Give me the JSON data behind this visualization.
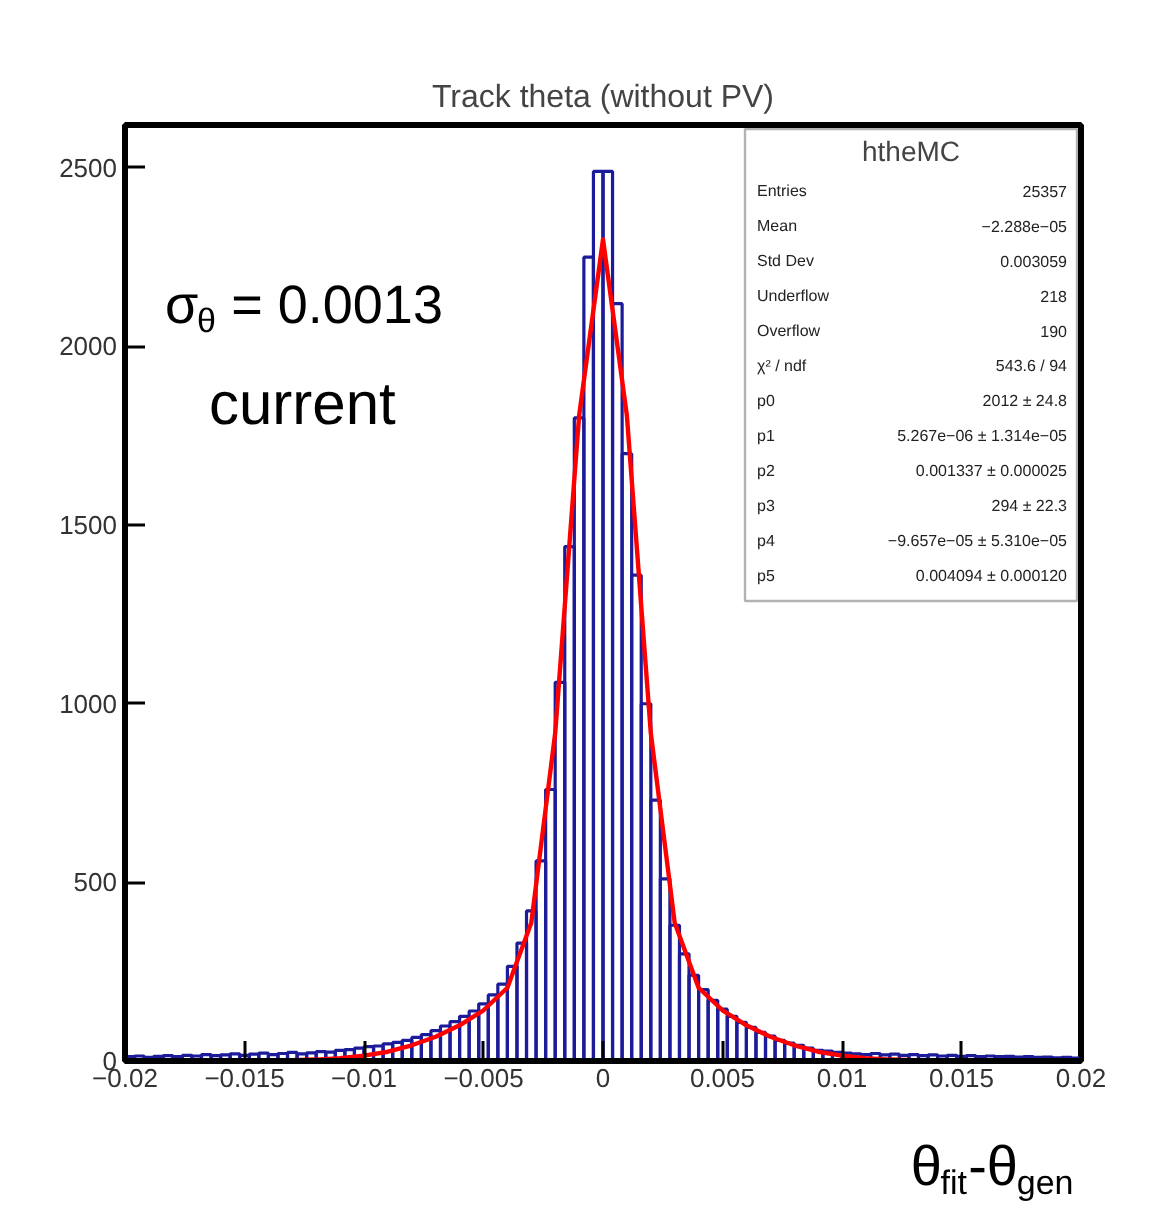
{
  "chart_data": [
    {
      "type": "histogram",
      "title": "Track theta (without PV)",
      "xlabel": "θ$_{fit}$-θ$_{gen}$",
      "color": "#1c1c9a",
      "bins": [
        -0.02,
        -0.0196,
        -0.0192,
        -0.0188,
        -0.0184,
        -0.018,
        -0.0176,
        -0.0172,
        -0.0168,
        -0.0164,
        -0.016,
        -0.0156,
        -0.0152,
        -0.0148,
        -0.0144,
        -0.014,
        -0.0136,
        -0.0132,
        -0.0128,
        -0.0124,
        -0.012,
        -0.0116,
        -0.0112,
        -0.0108,
        -0.0104,
        -0.01,
        -0.0096,
        -0.0092,
        -0.0088,
        -0.0084,
        -0.008,
        -0.0076,
        -0.0072,
        -0.0068,
        -0.0064,
        -0.006,
        -0.0056,
        -0.0052,
        -0.0048,
        -0.0044,
        -0.004,
        -0.0036,
        -0.0032,
        -0.0028,
        -0.0024,
        -0.002,
        -0.0016,
        -0.0012,
        -0.0008,
        -0.0004,
        0,
        0.0004,
        0.0008,
        0.0012,
        0.0016,
        0.002,
        0.0024,
        0.0028,
        0.0032,
        0.0036,
        0.004,
        0.0044,
        0.0048,
        0.0052,
        0.0056,
        0.006,
        0.0064,
        0.0068,
        0.0072,
        0.0076,
        0.008,
        0.0084,
        0.0088,
        0.0092,
        0.0096,
        0.01,
        0.0104,
        0.0108,
        0.0112,
        0.0116,
        0.012,
        0.0124,
        0.0128,
        0.0132,
        0.0136,
        0.014,
        0.0144,
        0.0148,
        0.0152,
        0.0156,
        0.016,
        0.0164,
        0.0168,
        0.0172,
        0.0176,
        0.018,
        0.0184,
        0.0188,
        0.0192,
        0.0196,
        0.02
      ],
      "values": [
        12,
        14,
        10,
        13,
        15,
        12,
        16,
        14,
        18,
        15,
        17,
        20,
        16,
        19,
        22,
        18,
        21,
        24,
        20,
        23,
        26,
        25,
        30,
        32,
        36,
        40,
        42,
        48,
        52,
        58,
        66,
        74,
        85,
        98,
        110,
        125,
        140,
        160,
        185,
        215,
        265,
        330,
        420,
        560,
        760,
        1060,
        1440,
        1800,
        2250,
        2490,
        2490,
        2120,
        1700,
        1360,
        1000,
        730,
        510,
        380,
        300,
        240,
        200,
        170,
        145,
        125,
        108,
        94,
        80,
        70,
        58,
        50,
        44,
        36,
        30,
        28,
        24,
        22,
        20,
        18,
        21,
        17,
        19,
        16,
        18,
        15,
        17,
        14,
        16,
        13,
        15,
        12,
        14,
        12,
        13,
        11,
        12,
        10,
        11,
        9,
        10,
        8
      ],
      "series": [
        {
          "type": "line",
          "color": "#ff0000",
          "x": [
            -0.013,
            -0.012,
            -0.011,
            -0.01,
            -0.009,
            -0.008,
            -0.007,
            -0.006,
            -0.005,
            -0.004,
            -0.003,
            -0.002,
            -0.001,
            0,
            0.001,
            0.002,
            0.003,
            0.004,
            0.005,
            0.006,
            0.007,
            0.008,
            0.009,
            0.01,
            0.011,
            0.012,
            0.013
          ],
          "values": [
            2,
            4,
            8,
            15,
            26,
            44,
            68,
            100,
            142,
            205,
            387,
            918,
            1806,
            2300,
            1806,
            918,
            387,
            205,
            142,
            100,
            68,
            44,
            26,
            15,
            8,
            4,
            2
          ]
        }
      ],
      "xlim": [
        -0.02,
        0.02
      ],
      "ylim": [
        0,
        2620
      ],
      "xticks": [
        {
          "value": -0.02,
          "label": "−0.02"
        },
        {
          "value": -0.015,
          "label": "−0.015"
        },
        {
          "value": -0.01,
          "label": "−0.01"
        },
        {
          "value": -0.005,
          "label": "−0.005"
        },
        0,
        0.005,
        0.01,
        0.015,
        0.02
      ],
      "yticks": [
        0,
        500,
        1000,
        1500,
        2000,
        2500
      ],
      "grid": false,
      "annotations": [
        "σ$_{θ}$ = 0.0013",
        "current"
      ]
    },
    {
      "type": "other",
      "title": "htheMC",
      "annotations": [
        "Entries",
        "25357",
        "Mean",
        "−2.288e−05",
        "Std Dev",
        "0.003059",
        "Underflow",
        "218",
        "Overflow",
        "190",
        "χ² / ndf",
        "543.6 / 94",
        "p0",
        "2012 ± 24.8",
        "p1",
        "5.267e−06 ± 1.314e−05",
        "p2",
        "0.001337 ± 0.000025",
        "p3",
        "294 ± 22.3",
        "p4",
        "−9.657e−05 ± 5.310e−05",
        "p5",
        "0.004094 ± 0.000120"
      ]
    }
  ]
}
